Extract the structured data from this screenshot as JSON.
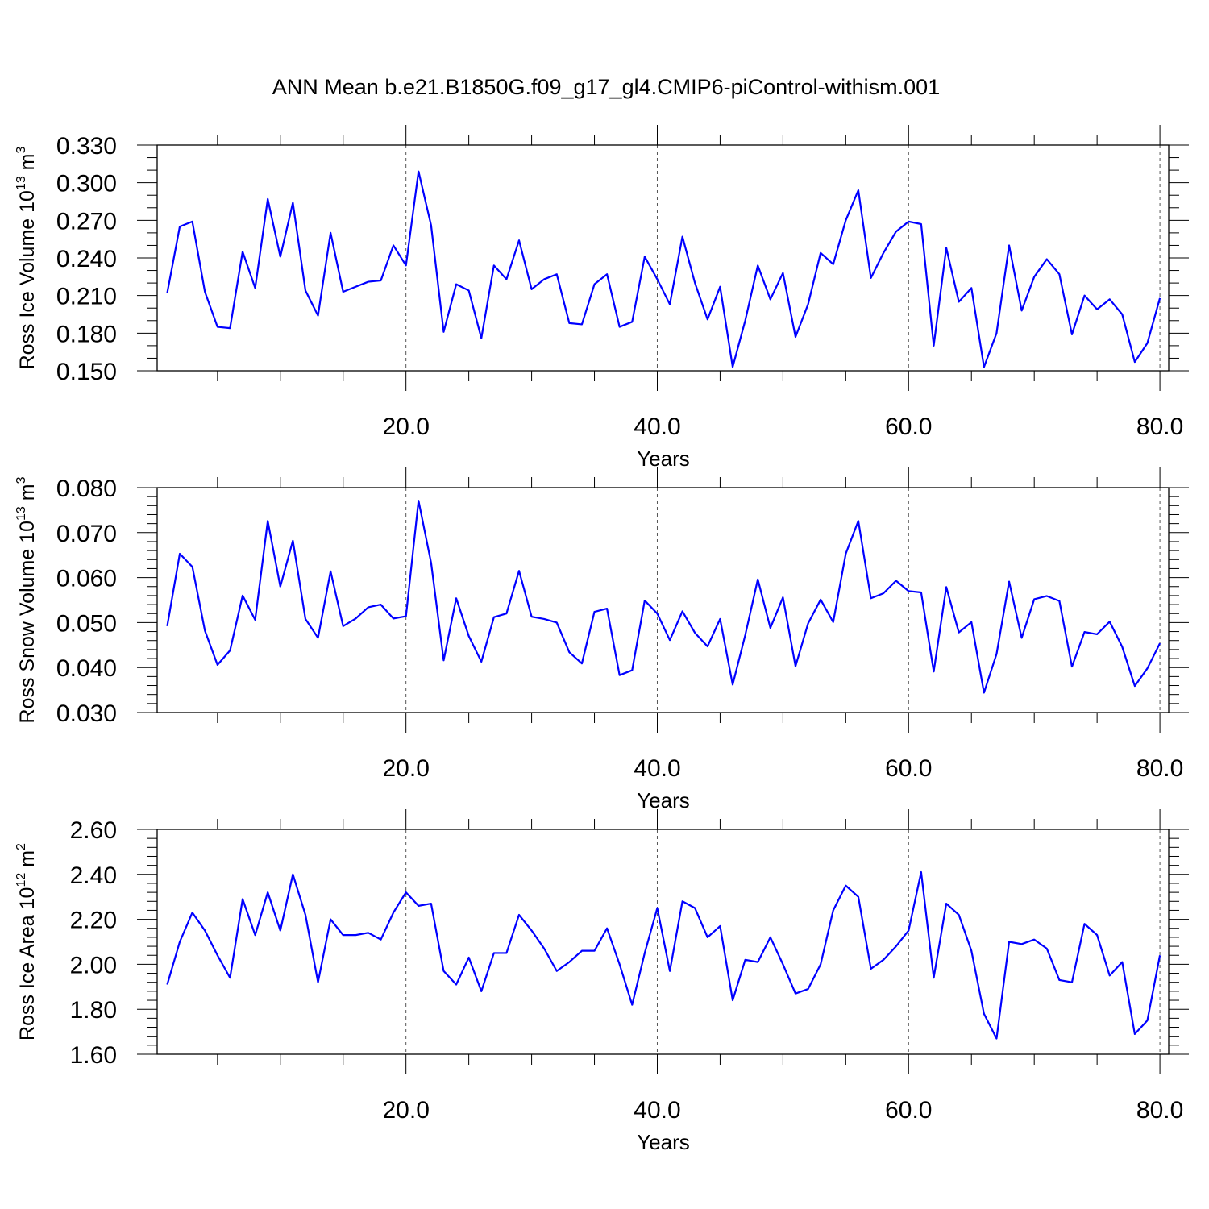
{
  "title": "ANN Mean b.e21.B1850G.f09_g17_gl4.CMIP6-piControl-withism.001",
  "colors": {
    "line": "#0000ff",
    "grid": "#555555",
    "axis": "#000000"
  },
  "chart_data": [
    {
      "type": "line",
      "xlabel": "Years",
      "ylabel": {
        "main": "Ross Ice Volume 10",
        "exp": "13",
        "mid": " m",
        "exp2": "3"
      },
      "xlim": [
        0.2,
        80.7
      ],
      "ylim": [
        0.15,
        0.33
      ],
      "xticks": [
        20,
        40,
        60,
        80
      ],
      "xtick_labels": [
        "20.0",
        "40.0",
        "60.0",
        "80.0"
      ],
      "yticks": [
        0.15,
        0.18,
        0.21,
        0.24,
        0.27,
        0.3,
        0.33
      ],
      "ytick_labels": [
        "0.150",
        "0.180",
        "0.210",
        "0.240",
        "0.270",
        "0.300",
        "0.330"
      ],
      "y_minor_step": 0.01,
      "grid_x": true,
      "x_start": 1,
      "values": [
        0.212,
        0.265,
        0.269,
        0.213,
        0.185,
        0.184,
        0.245,
        0.216,
        0.287,
        0.241,
        0.284,
        0.214,
        0.194,
        0.26,
        0.213,
        0.217,
        0.221,
        0.222,
        0.25,
        0.234,
        0.309,
        0.266,
        0.181,
        0.219,
        0.214,
        0.176,
        0.234,
        0.223,
        0.254,
        0.215,
        0.223,
        0.227,
        0.188,
        0.187,
        0.219,
        0.227,
        0.185,
        0.189,
        0.241,
        0.223,
        0.203,
        0.257,
        0.22,
        0.191,
        0.217,
        0.153,
        0.19,
        0.234,
        0.207,
        0.228,
        0.177,
        0.203,
        0.244,
        0.235,
        0.27,
        0.294,
        0.224,
        0.244,
        0.261,
        0.269,
        0.267,
        0.17,
        0.248,
        0.205,
        0.216,
        0.153,
        0.18,
        0.25,
        0.198,
        0.225,
        0.239,
        0.227,
        0.179,
        0.21,
        0.199,
        0.207,
        0.195,
        0.157,
        0.172,
        0.208
      ]
    },
    {
      "type": "line",
      "xlabel": "Years",
      "ylabel": {
        "main": "Ross Snow Volume 10",
        "exp": "13",
        "mid": " m",
        "exp2": "3"
      },
      "xlim": [
        0.2,
        80.7
      ],
      "ylim": [
        0.03,
        0.08
      ],
      "xticks": [
        20,
        40,
        60,
        80
      ],
      "xtick_labels": [
        "20.0",
        "40.0",
        "60.0",
        "80.0"
      ],
      "yticks": [
        0.03,
        0.04,
        0.05,
        0.06,
        0.07,
        0.08
      ],
      "ytick_labels": [
        "0.030",
        "0.040",
        "0.050",
        "0.060",
        "0.070",
        "0.080"
      ],
      "y_minor_step": 0.002,
      "grid_x": true,
      "x_start": 1,
      "values": [
        0.0492,
        0.0653,
        0.0624,
        0.0482,
        0.0406,
        0.0438,
        0.056,
        0.0506,
        0.0726,
        0.058,
        0.0682,
        0.0508,
        0.0466,
        0.0614,
        0.0492,
        0.0509,
        0.0534,
        0.054,
        0.0509,
        0.0514,
        0.0771,
        0.0633,
        0.0416,
        0.0554,
        0.047,
        0.0413,
        0.0512,
        0.052,
        0.0615,
        0.0513,
        0.0508,
        0.05,
        0.0434,
        0.0409,
        0.0524,
        0.0531,
        0.0383,
        0.0394,
        0.0549,
        0.052,
        0.0461,
        0.0525,
        0.0477,
        0.0447,
        0.0508,
        0.0362,
        0.0472,
        0.0596,
        0.0488,
        0.0556,
        0.0403,
        0.0498,
        0.0551,
        0.0501,
        0.0653,
        0.0726,
        0.0554,
        0.0565,
        0.0593,
        0.057,
        0.0567,
        0.0391,
        0.0579,
        0.0478,
        0.0501,
        0.0344,
        0.043,
        0.0591,
        0.0466,
        0.0552,
        0.0559,
        0.0548,
        0.0402,
        0.0479,
        0.0474,
        0.0502,
        0.0446,
        0.0359,
        0.0398,
        0.0454
      ]
    },
    {
      "type": "line",
      "xlabel": "Years",
      "ylabel": {
        "main": "Ross Ice Area 10",
        "exp": "12",
        "mid": " m",
        "exp2": "2"
      },
      "xlim": [
        0.2,
        80.7
      ],
      "ylim": [
        1.6,
        2.6
      ],
      "xticks": [
        20,
        40,
        60,
        80
      ],
      "xtick_labels": [
        "20.0",
        "40.0",
        "60.0",
        "80.0"
      ],
      "yticks": [
        1.6,
        1.8,
        2.0,
        2.2,
        2.4,
        2.6
      ],
      "ytick_labels": [
        "1.60",
        "1.80",
        "2.00",
        "2.20",
        "2.40",
        "2.60"
      ],
      "y_minor_step": 0.04,
      "grid_x": true,
      "x_start": 1,
      "values": [
        1.91,
        2.1,
        2.23,
        2.15,
        2.04,
        1.94,
        2.29,
        2.13,
        2.32,
        2.15,
        2.4,
        2.22,
        1.92,
        2.2,
        2.13,
        2.13,
        2.14,
        2.11,
        2.23,
        2.32,
        2.26,
        2.27,
        1.97,
        1.91,
        2.03,
        1.88,
        2.05,
        2.05,
        2.22,
        2.15,
        2.07,
        1.97,
        2.01,
        2.06,
        2.06,
        2.16,
        2.0,
        1.82,
        2.05,
        2.25,
        1.97,
        2.28,
        2.25,
        2.12,
        2.17,
        1.84,
        2.02,
        2.01,
        2.12,
        2.0,
        1.87,
        1.89,
        2.0,
        2.24,
        2.35,
        2.3,
        1.98,
        2.02,
        2.08,
        2.15,
        2.41,
        1.94,
        2.27,
        2.22,
        2.06,
        1.78,
        1.67,
        2.1,
        2.09,
        2.11,
        2.07,
        1.93,
        1.92,
        2.18,
        2.13,
        1.95,
        2.01,
        1.69,
        1.75,
        2.04
      ]
    }
  ]
}
